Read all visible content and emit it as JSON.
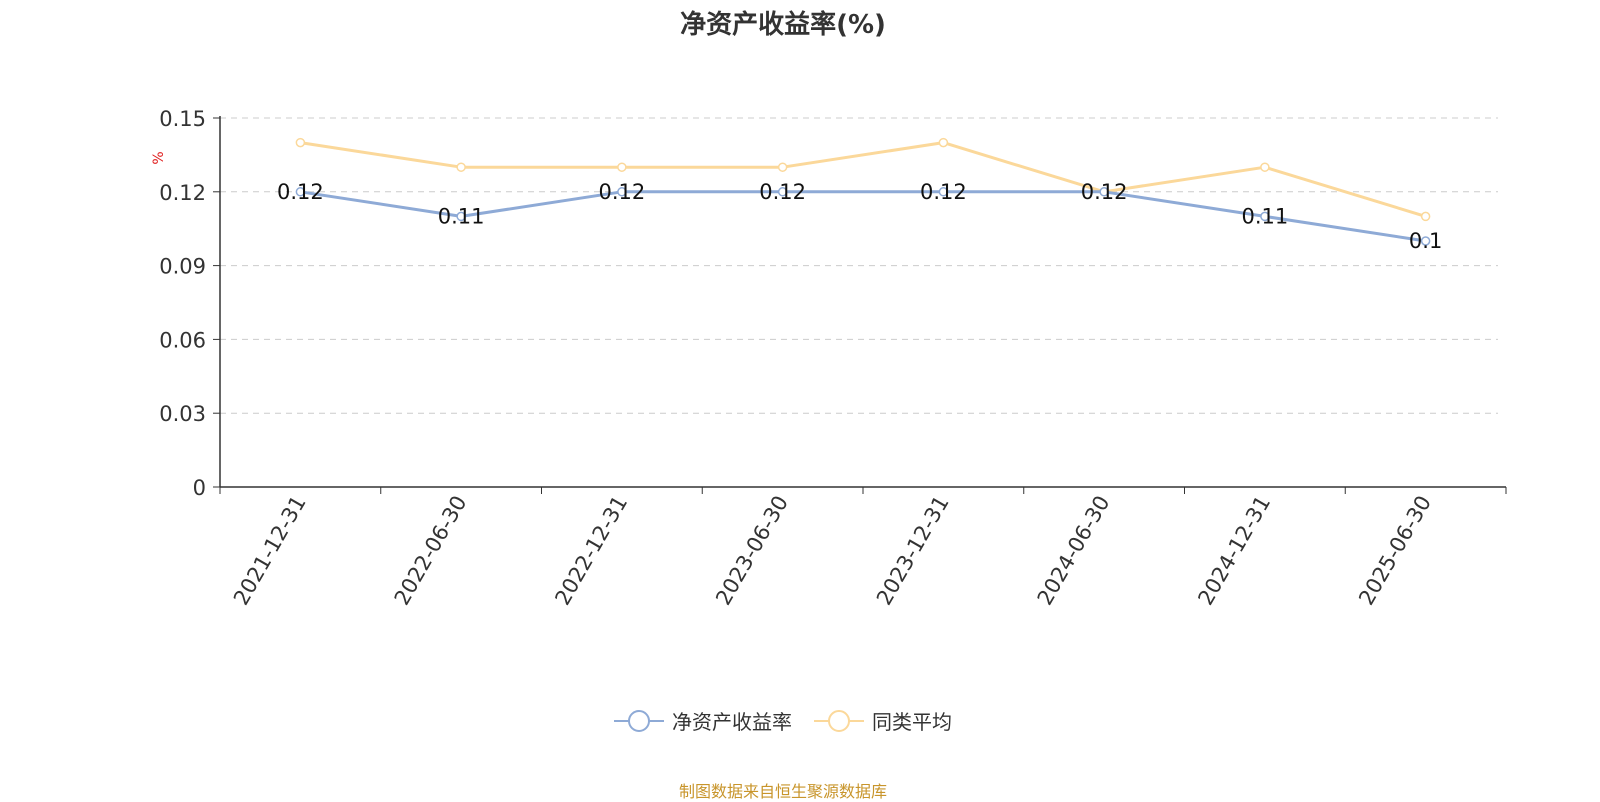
{
  "chart_data": {
    "type": "line",
    "title": "净资产收益率(%)",
    "ylabel": "%",
    "xlabel": "",
    "categories": [
      "2021-12-31",
      "2022-06-30",
      "2022-12-31",
      "2023-06-30",
      "2023-12-31",
      "2024-06-30",
      "2024-12-31",
      "2025-06-30"
    ],
    "ylim": [
      0,
      0.15
    ],
    "yticks": [
      "0",
      "0.03",
      "0.06",
      "0.09",
      "0.12",
      "0.15"
    ],
    "grid": true,
    "legend_position": "bottom",
    "series": [
      {
        "name": "净资产收益率",
        "color": "#8eaad6",
        "values": [
          0.12,
          0.11,
          0.12,
          0.12,
          0.12,
          0.12,
          0.11,
          0.1
        ],
        "data_labels": [
          "0.12",
          "0.11",
          "0.12",
          "0.12",
          "0.12",
          "0.12",
          "0.11",
          "0.1"
        ]
      },
      {
        "name": "同类平均",
        "color": "#fbd89a",
        "values": [
          0.14,
          0.13,
          0.13,
          0.13,
          0.14,
          0.12,
          0.13,
          0.11
        ]
      }
    ]
  },
  "source_note": "制图数据来自恒生聚源数据库"
}
